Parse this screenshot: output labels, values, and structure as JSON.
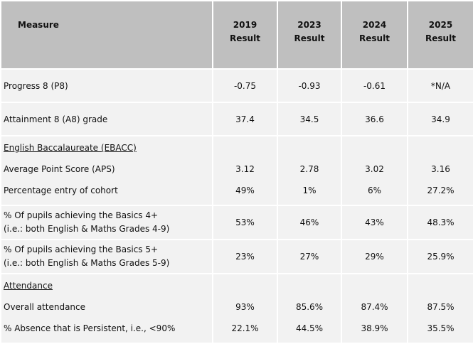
{
  "table": {
    "header": {
      "measure": "Measure",
      "columns": [
        {
          "year": "2019",
          "label": "Result"
        },
        {
          "year": "2023",
          "label": "Result"
        },
        {
          "year": "2024",
          "label": "Result"
        },
        {
          "year": "2025",
          "label": "Result"
        }
      ]
    },
    "rows": {
      "progress8": {
        "label": "Progress 8 (P8)",
        "values": [
          "-0.75",
          "-0.93",
          "-0.61",
          "*N/A"
        ]
      },
      "attainment8": {
        "label": "Attainment 8 (A8) grade",
        "values": [
          "37.4",
          "34.5",
          "36.6",
          "34.9"
        ]
      },
      "ebacc": {
        "heading": "English Baccalaureate (EBACC)",
        "aps": {
          "label": "Average Point Score (APS)",
          "values": [
            "3.12",
            "2.78",
            "3.02",
            "3.16"
          ]
        },
        "entry": {
          "label": "Percentage entry of cohort",
          "values": [
            "49%",
            "1%",
            "6%",
            "27.2%"
          ]
        }
      },
      "basics4": {
        "label_line1": "% Of pupils achieving the Basics 4+",
        "label_line2": "(i.e.: both English & Maths Grades 4-9)",
        "values": [
          "53%",
          "46%",
          "43%",
          "48.3%"
        ]
      },
      "basics5": {
        "label_line1": "% Of pupils achieving the Basics 5+",
        "label_line2": "(i.e.: both English & Maths Grades 5-9)",
        "values": [
          "23%",
          "27%",
          "29%",
          "25.9%"
        ]
      },
      "attendance": {
        "heading": "Attendance",
        "overall": {
          "label": "Overall attendance",
          "values": [
            "93%",
            "85.6%",
            "87.4%",
            "87.5%"
          ]
        },
        "persistent": {
          "label": "% Absence that is Persistent, i.e., <90%",
          "values": [
            "22.1%",
            "44.5%",
            "38.9%",
            "35.5%"
          ]
        }
      }
    }
  },
  "colors": {
    "header_bg": "#bfbfbf",
    "body_bg": "#f2f2f2",
    "border": "#ffffff",
    "text": "#111111"
  }
}
